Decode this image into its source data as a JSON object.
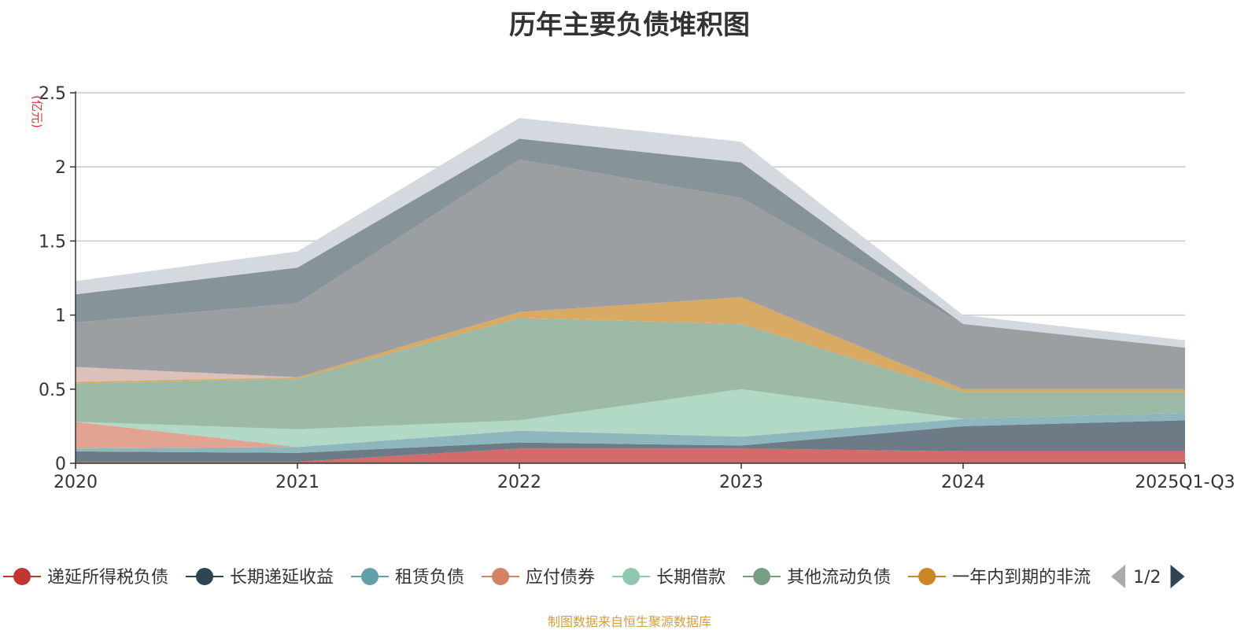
{
  "chart_data": {
    "type": "area",
    "stacked": true,
    "title": "历年主要负债堆积图",
    "ylabel": "(亿元)",
    "categories": [
      "2020",
      "2021",
      "2022",
      "2023",
      "2024",
      "2025Q1-Q3"
    ],
    "ylim": [
      0,
      2.5
    ],
    "yticks": [
      "0",
      "0.5",
      "1",
      "1.5",
      "2",
      "2.5"
    ],
    "grid": true,
    "series": [
      {
        "name": "递延所得税负债",
        "color": "#d46a6a",
        "values": [
          0.01,
          0.01,
          0.1,
          0.1,
          0.08,
          0.08
        ]
      },
      {
        "name": "长期递延收益",
        "color": "#6c7b86",
        "values": [
          0.07,
          0.06,
          0.04,
          0.02,
          0.17,
          0.21
        ]
      },
      {
        "name": "租赁负债",
        "color": "#8db7bd",
        "values": [
          0.02,
          0.04,
          0.08,
          0.06,
          0.05,
          0.05
        ]
      },
      {
        "name": "应付债券",
        "color": "#e2a492",
        "values": [
          0.18,
          0.0,
          0.0,
          0.0,
          0.0,
          0.0
        ]
      },
      {
        "name": "长期借款",
        "color": "#b2d8c6",
        "values": [
          0.0,
          0.12,
          0.07,
          0.32,
          0.0,
          0.0
        ]
      },
      {
        "name": "其他流动负债",
        "color": "#9cbaa6",
        "values": [
          0.26,
          0.34,
          0.69,
          0.44,
          0.18,
          0.14
        ]
      },
      {
        "name": "一年内到期的非流动负债",
        "color": "#d9aa64",
        "values": [
          0.01,
          0.01,
          0.04,
          0.18,
          0.02,
          0.02
        ]
      },
      {
        "name": "",
        "color": "#dcc0ba",
        "values": [
          0.1,
          0.0,
          0.0,
          0.0,
          0.0,
          0.0
        ]
      },
      {
        "name": "",
        "color": "#9c9fa2",
        "values": [
          0.3,
          0.5,
          1.03,
          0.67,
          0.44,
          0.28
        ]
      },
      {
        "name": "",
        "color": "#86949a",
        "values": [
          0.19,
          0.24,
          0.14,
          0.24,
          0.0,
          0.0
        ]
      },
      {
        "name": "",
        "color": "#d4d9e0",
        "values": [
          0.09,
          0.11,
          0.14,
          0.14,
          0.06,
          0.05
        ]
      }
    ],
    "legend": {
      "placement": "bottom",
      "visible_items": [
        "递延所得税负债",
        "长期递延收益",
        "租赁负债",
        "应付债券",
        "长期借款",
        "其他流动负债",
        "一年内到期的非流"
      ],
      "marker_colors": [
        "#c23531",
        "#2f4554",
        "#61a0a8",
        "#d48265",
        "#91c7ae",
        "#749f83",
        "#ca8622"
      ],
      "page_text": "1/2"
    },
    "source_note": "制图数据来自恒生聚源数据库"
  }
}
